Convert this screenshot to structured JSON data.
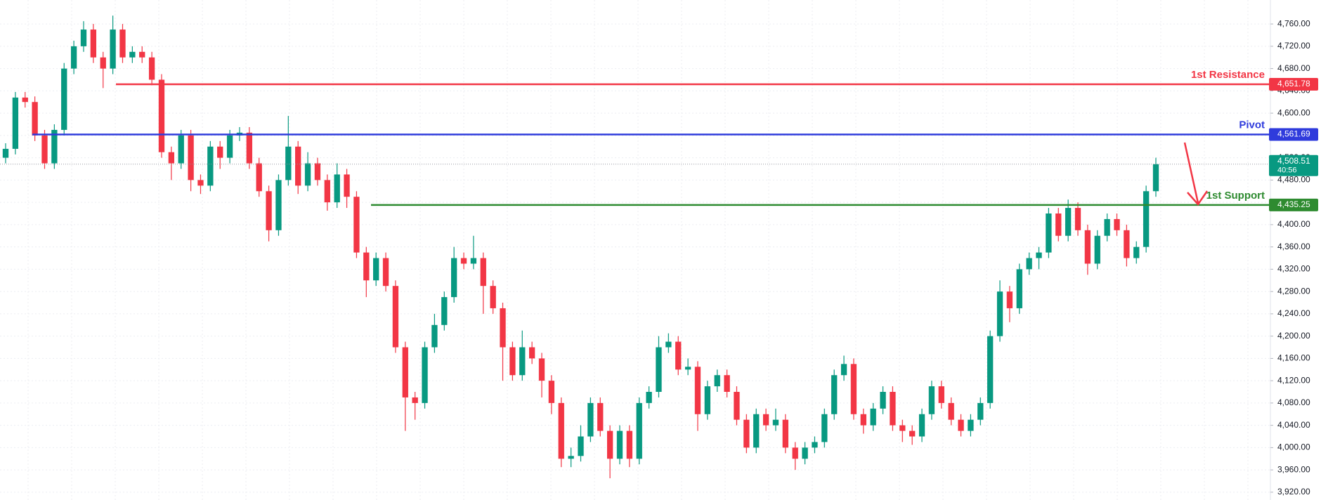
{
  "chart_data": {
    "type": "candlestick",
    "open": [
      4520,
      4536,
      4628,
      4620,
      4560,
      4510,
      4570,
      4680,
      4720,
      4750,
      4700,
      4680,
      4750,
      4700,
      4710,
      4700,
      4660,
      4530,
      4510,
      4560,
      4480,
      4470,
      4540,
      4520,
      4560,
      4565,
      4510,
      4460,
      4390,
      4480,
      4540,
      4470,
      4510,
      4480,
      4440,
      4490,
      4450,
      4350,
      4300,
      4340,
      4290,
      4180,
      4090,
      4080,
      4180,
      4220,
      4270,
      4340,
      4330,
      4340,
      4290,
      4250,
      4180,
      4130,
      4180,
      4160,
      4120,
      4080,
      3980,
      3985,
      4020,
      4080,
      4030,
      3980,
      4030,
      3980,
      4080,
      4100,
      4180,
      4190,
      4140,
      4145,
      4060,
      4110,
      4130,
      4100,
      4050,
      4000,
      4060,
      4040,
      4050,
      4000,
      3980,
      4000,
      4010,
      4060,
      4130,
      4150,
      4060,
      4040,
      4070,
      4100,
      4040,
      4030,
      4020,
      4060,
      4110,
      4080,
      4050,
      4030,
      4050,
      4080,
      4200,
      4280,
      4250,
      4320,
      4340,
      4350,
      4420,
      4380,
      4430,
      4390,
      4330,
      4380,
      4410,
      4390,
      4340,
      4360,
      4460
    ],
    "high": [
      4546,
      4638,
      4638,
      4630,
      4570,
      4580,
      4690,
      4730,
      4765,
      4760,
      4710,
      4775,
      4760,
      4720,
      4720,
      4710,
      4670,
      4540,
      4570,
      4570,
      4490,
      4550,
      4550,
      4570,
      4575,
      4575,
      4520,
      4470,
      4490,
      4595,
      4550,
      4530,
      4520,
      4490,
      4510,
      4500,
      4460,
      4360,
      4350,
      4350,
      4300,
      4190,
      4100,
      4190,
      4240,
      4280,
      4360,
      4350,
      4380,
      4350,
      4300,
      4260,
      4190,
      4210,
      4190,
      4170,
      4130,
      4090,
      4000,
      4040,
      4090,
      4090,
      4040,
      4040,
      4040,
      4090,
      4110,
      4200,
      4205,
      4200,
      4160,
      4155,
      4120,
      4140,
      4140,
      4110,
      4060,
      4070,
      4070,
      4070,
      4060,
      4010,
      4010,
      4020,
      4070,
      4140,
      4165,
      4160,
      4070,
      4080,
      4110,
      4110,
      4050,
      4040,
      4070,
      4120,
      4120,
      4090,
      4060,
      4060,
      4090,
      4210,
      4300,
      4290,
      4330,
      4350,
      4360,
      4430,
      4430,
      4445,
      4440,
      4400,
      4390,
      4420,
      4420,
      4400,
      4370,
      4470,
      4520
    ],
    "low": [
      4510,
      4526,
      4610,
      4550,
      4500,
      4500,
      4560,
      4670,
      4710,
      4690,
      4645,
      4670,
      4690,
      4690,
      4690,
      4650,
      4520,
      4480,
      4500,
      4460,
      4455,
      4460,
      4500,
      4510,
      4550,
      4500,
      4450,
      4370,
      4380,
      4470,
      4455,
      4460,
      4470,
      4425,
      4430,
      4430,
      4340,
      4270,
      4290,
      4280,
      4170,
      4030,
      4050,
      4070,
      4170,
      4210,
      4260,
      4320,
      4320,
      4240,
      4240,
      4120,
      4120,
      4120,
      4150,
      4090,
      4060,
      3965,
      3965,
      3975,
      4010,
      4020,
      3945,
      3970,
      3965,
      3970,
      4070,
      4090,
      4170,
      4130,
      4130,
      4030,
      4050,
      4100,
      4090,
      4040,
      3990,
      3990,
      4030,
      4030,
      3990,
      3960,
      3970,
      3990,
      4000,
      4050,
      4120,
      4050,
      4025,
      4030,
      4060,
      4030,
      4010,
      4005,
      4010,
      4050,
      4070,
      4040,
      4020,
      4020,
      4040,
      4070,
      4190,
      4225,
      4240,
      4310,
      4320,
      4340,
      4370,
      4370,
      4380,
      4310,
      4320,
      4370,
      4380,
      4325,
      4330,
      4350,
      4450
    ],
    "close": [
      4536,
      4628,
      4620,
      4560,
      4510,
      4570,
      4680,
      4720,
      4750,
      4700,
      4680,
      4750,
      4700,
      4710,
      4700,
      4660,
      4530,
      4510,
      4560,
      4480,
      4470,
      4540,
      4520,
      4560,
      4565,
      4510,
      4460,
      4390,
      4480,
      4540,
      4470,
      4510,
      4480,
      4440,
      4490,
      4450,
      4350,
      4300,
      4340,
      4290,
      4180,
      4090,
      4080,
      4180,
      4220,
      4270,
      4340,
      4330,
      4340,
      4290,
      4250,
      4180,
      4130,
      4180,
      4160,
      4120,
      4080,
      3980,
      3985,
      4020,
      4080,
      4030,
      3980,
      4030,
      3980,
      4080,
      4100,
      4180,
      4190,
      4140,
      4145,
      4060,
      4110,
      4130,
      4100,
      4050,
      4000,
      4060,
      4040,
      4050,
      4000,
      3980,
      4000,
      4010,
      4060,
      4130,
      4150,
      4060,
      4040,
      4070,
      4100,
      4040,
      4030,
      4020,
      4060,
      4110,
      4080,
      4050,
      4030,
      4050,
      4080,
      4200,
      4280,
      4250,
      4320,
      4340,
      4350,
      4420,
      4380,
      4430,
      4390,
      4330,
      4380,
      4410,
      4390,
      4340,
      4360,
      4460,
      4508.51
    ],
    "up_color": "#089981",
    "down_color": "#f23645",
    "ylim": [
      3906,
      4803
    ],
    "yticks": [
      {
        "value": 3920,
        "label": "3,920.00"
      },
      {
        "value": 3960,
        "label": "3,960.00"
      },
      {
        "value": 4000,
        "label": "4,000.00"
      },
      {
        "value": 4040,
        "label": "4,040.00"
      },
      {
        "value": 4080,
        "label": "4,080.00"
      },
      {
        "value": 4120,
        "label": "4,120.00"
      },
      {
        "value": 4160,
        "label": "4,160.00"
      },
      {
        "value": 4200,
        "label": "4,200.00"
      },
      {
        "value": 4240,
        "label": "4,240.00"
      },
      {
        "value": 4280,
        "label": "4,280.00"
      },
      {
        "value": 4320,
        "label": "4,320.00"
      },
      {
        "value": 4360,
        "label": "4,360.00"
      },
      {
        "value": 4400,
        "label": "4,400.00"
      },
      {
        "value": 4440,
        "label": "4,440.00"
      },
      {
        "value": 4480,
        "label": "4,480.00"
      },
      {
        "value": 4520,
        "label": "4,520.00"
      },
      {
        "value": 4560,
        "label": "4,560.00"
      },
      {
        "value": 4600,
        "label": "4,600.00"
      },
      {
        "value": 4640,
        "label": "4,640.00"
      },
      {
        "value": 4680,
        "label": "4,680.00"
      },
      {
        "value": 4720,
        "label": "4,720.00"
      },
      {
        "value": 4760,
        "label": "4,760.00"
      }
    ],
    "grid": true,
    "levels": [
      {
        "name": "1st Resistance",
        "value": 4651.78,
        "value_label": "4,651.78",
        "color": "#f23645"
      },
      {
        "name": "Pivot",
        "value": 4561.69,
        "value_label": "4,561.69",
        "color": "#2f3bdc"
      },
      {
        "name": "1st Support",
        "value": 4435.25,
        "value_label": "4,435.25",
        "color": "#2e8b30"
      }
    ],
    "last_price": {
      "value": 4508.51,
      "label": "4,508.51",
      "countdown": "40:56",
      "color": "#089981"
    }
  }
}
